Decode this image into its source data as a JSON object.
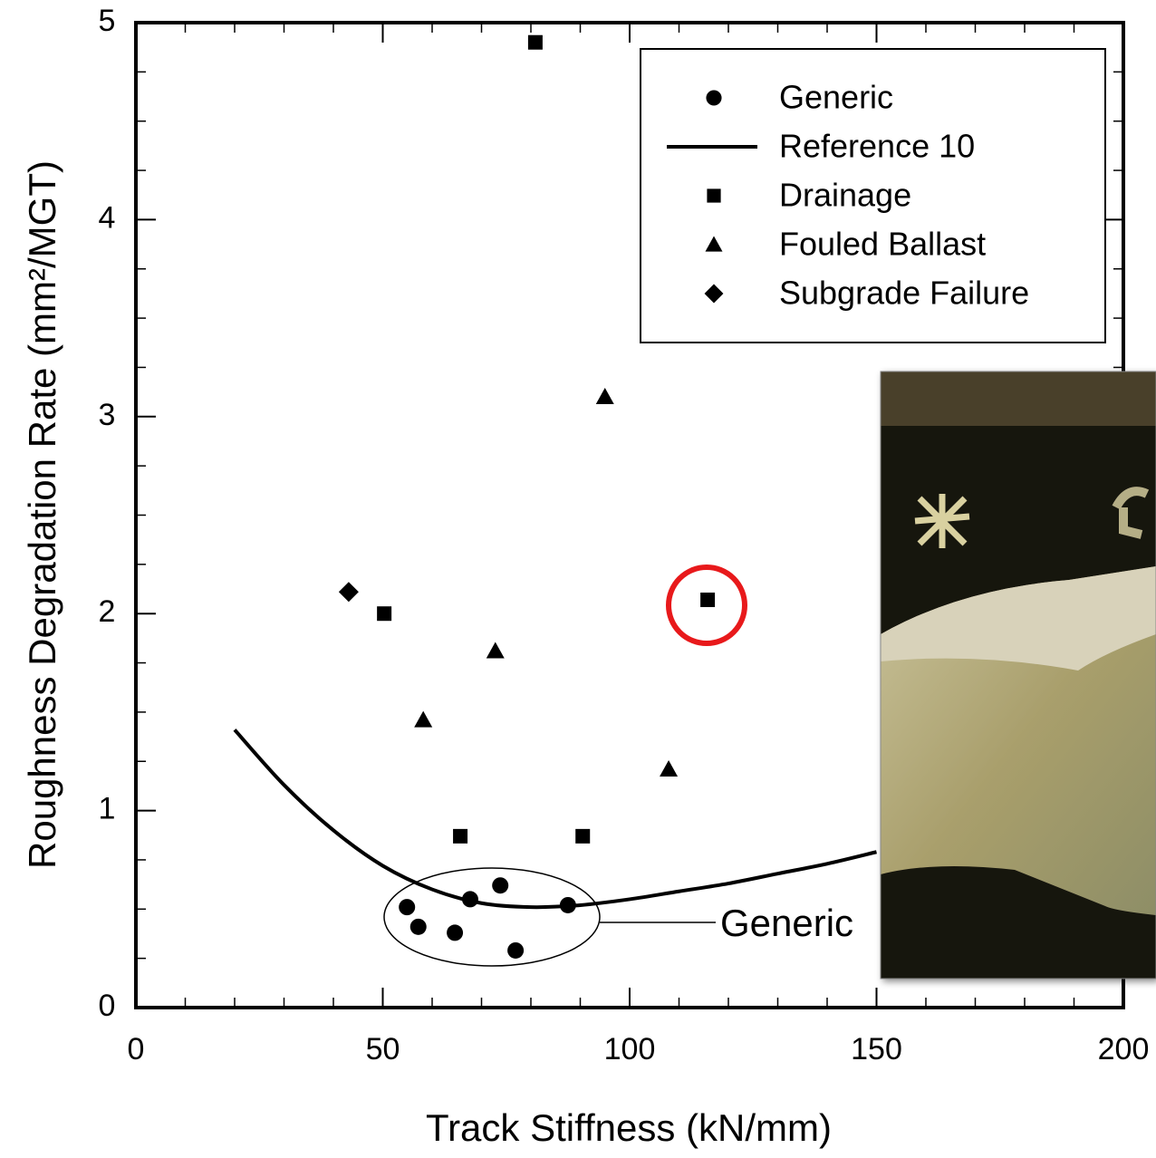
{
  "chart_data": {
    "type": "scatter",
    "x_label": "Track Stiffness (kN/mm)",
    "y_label": "Roughness Degradation Rate (mm²/MGT)",
    "xlim": [
      0,
      200
    ],
    "ylim": [
      0,
      5
    ],
    "xticks": [
      0,
      50,
      100,
      150,
      200
    ],
    "yticks": [
      0,
      1,
      2,
      3,
      4,
      5
    ],
    "x_minor_ticks": [
      10,
      20,
      30,
      40,
      60,
      70,
      80,
      90,
      110,
      120,
      130,
      140,
      160,
      170,
      180,
      190
    ],
    "y_minor_ticks": [
      0.25,
      0.5,
      0.75,
      1.25,
      1.5,
      1.75,
      2.25,
      2.5,
      2.75,
      3.25,
      3.5,
      3.75,
      4.25,
      4.5,
      4.75
    ],
    "legend": "upper right",
    "series": [
      {
        "name": "Generic",
        "marker": "circle",
        "color": "#000000",
        "x": [
          54.9,
          57.2,
          64.6,
          67.7,
          73.8,
          76.9,
          87.5
        ],
        "values": [
          0.51,
          0.41,
          0.38,
          0.55,
          0.62,
          0.29,
          0.52
        ]
      },
      {
        "name": "Reference 10",
        "marker": "line",
        "color": "#000000",
        "x": [
          20,
          30,
          40,
          50,
          60,
          70,
          80,
          90,
          100,
          110,
          120,
          130,
          140,
          150
        ],
        "values": [
          1.41,
          1.13,
          0.9,
          0.72,
          0.6,
          0.53,
          0.51,
          0.52,
          0.55,
          0.59,
          0.63,
          0.68,
          0.73,
          0.79
        ]
      },
      {
        "name": "Drainage",
        "marker": "square",
        "color": "#000000",
        "x": [
          80.9,
          50.3,
          115.8,
          65.7,
          90.5
        ],
        "values": [
          4.9,
          2.0,
          2.07,
          0.87,
          0.87
        ]
      },
      {
        "name": "Fouled Ballast",
        "marker": "triangle",
        "color": "#000000",
        "x": [
          95.0,
          72.8,
          58.2,
          107.9
        ],
        "values": [
          3.1,
          1.81,
          1.46,
          1.21
        ]
      },
      {
        "name": "Subgrade Failure",
        "marker": "diamond",
        "color": "#000000",
        "x": [
          43.1
        ],
        "values": [
          2.11
        ]
      }
    ],
    "annotation": "Generic"
  }
}
